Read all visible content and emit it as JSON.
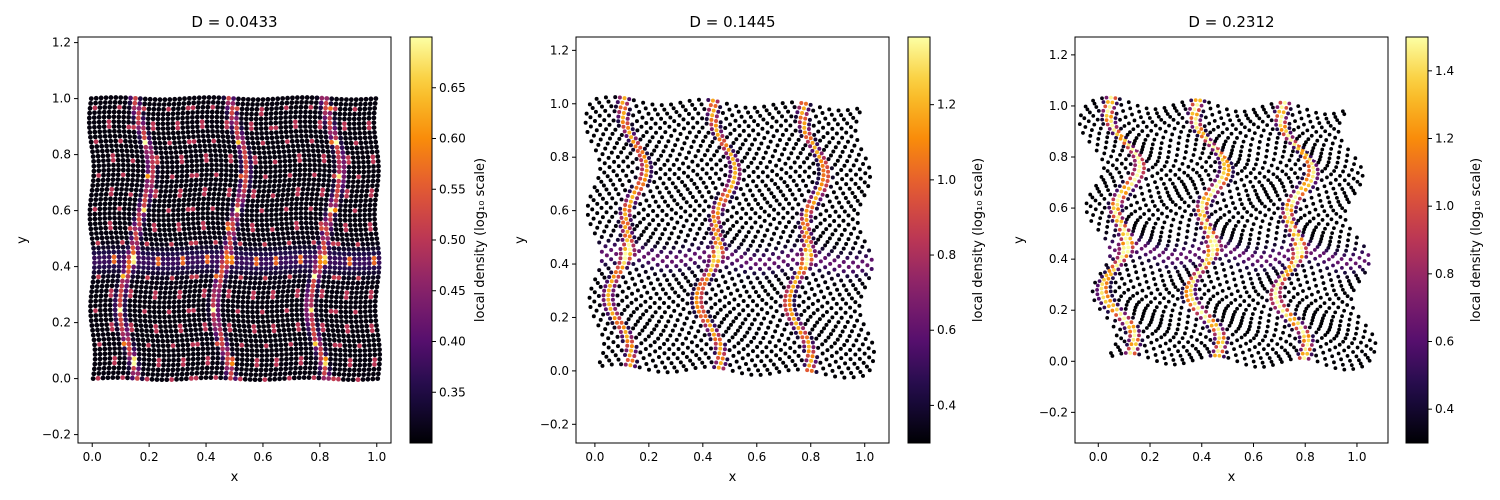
{
  "chart_data": [
    {
      "type": "scatter",
      "title": "D = 0.0433",
      "xlabel": "x",
      "ylabel": "y",
      "xlim": [
        -0.05,
        1.05
      ],
      "ylim": [
        -0.23,
        1.22
      ],
      "xticks": [
        0.0,
        0.2,
        0.4,
        0.6,
        0.8,
        1.0
      ],
      "xtick_labels": [
        "0.0",
        "0.2",
        "0.4",
        "0.6",
        "0.8",
        "1.0"
      ],
      "yticks": [
        -0.2,
        0.0,
        0.2,
        0.4,
        0.6,
        0.8,
        1.0,
        1.2
      ],
      "ytick_labels": [
        "−0.2",
        "0.0",
        "0.2",
        "0.4",
        "0.6",
        "0.8",
        "1.0",
        "1.2"
      ],
      "colorbar": {
        "label": "local density (log₁₀ scale)",
        "min": 0.3,
        "max": 0.7,
        "ticks": [
          0.35,
          0.4,
          0.45,
          0.5,
          0.55,
          0.6,
          0.65
        ],
        "tick_labels": [
          "0.35",
          "0.40",
          "0.45",
          "0.50",
          "0.55",
          "0.60",
          "0.65"
        ]
      },
      "colormap": "inferno",
      "grid": false,
      "deformation": 0.0433
    },
    {
      "type": "scatter",
      "title": "D = 0.1445",
      "xlabel": "x",
      "ylabel": "y",
      "xlim": [
        -0.07,
        1.09
      ],
      "ylim": [
        -0.27,
        1.25
      ],
      "xticks": [
        0.0,
        0.2,
        0.4,
        0.6,
        0.8,
        1.0
      ],
      "xtick_labels": [
        "0.0",
        "0.2",
        "0.4",
        "0.6",
        "0.8",
        "1.0"
      ],
      "yticks": [
        -0.2,
        0.0,
        0.2,
        0.4,
        0.6,
        0.8,
        1.0,
        1.2
      ],
      "ytick_labels": [
        "−0.2",
        "0.0",
        "0.2",
        "0.4",
        "0.6",
        "0.8",
        "1.0",
        "1.2"
      ],
      "colorbar": {
        "label": "local density (log₁₀ scale)",
        "min": 0.3,
        "max": 1.38,
        "ticks": [
          0.4,
          0.6,
          0.8,
          1.0,
          1.2
        ],
        "tick_labels": [
          "0.4",
          "0.6",
          "0.8",
          "1.0",
          "1.2"
        ]
      },
      "colormap": "inferno",
      "grid": false,
      "deformation": 0.1445
    },
    {
      "type": "scatter",
      "title": "D = 0.2312",
      "xlabel": "x",
      "ylabel": "y",
      "xlim": [
        -0.09,
        1.12
      ],
      "ylim": [
        -0.32,
        1.27
      ],
      "xticks": [
        0.0,
        0.2,
        0.4,
        0.6,
        0.8,
        1.0
      ],
      "xtick_labels": [
        "0.0",
        "0.2",
        "0.4",
        "0.6",
        "0.8",
        "1.0"
      ],
      "yticks": [
        -0.2,
        0.0,
        0.2,
        0.4,
        0.6,
        0.8,
        1.0,
        1.2
      ],
      "ytick_labels": [
        "−0.2",
        "0.0",
        "0.2",
        "0.4",
        "0.6",
        "0.8",
        "1.0",
        "1.2"
      ],
      "colorbar": {
        "label": "local density (log₁₀ scale)",
        "min": 0.3,
        "max": 1.5,
        "ticks": [
          0.4,
          0.6,
          0.8,
          1.0,
          1.2,
          1.4
        ],
        "tick_labels": [
          "0.4",
          "0.6",
          "0.8",
          "1.0",
          "1.2",
          "1.4"
        ]
      },
      "colormap": "inferno",
      "grid": false,
      "deformation": 0.2312
    }
  ]
}
